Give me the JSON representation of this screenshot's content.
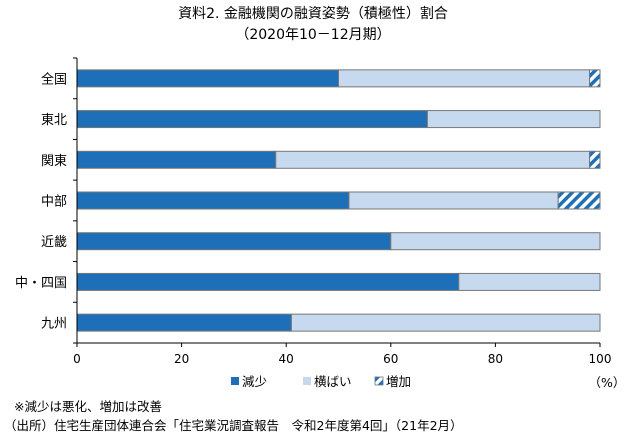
{
  "title": "資料2. 金融機関の融資姿勢（積極性）割合",
  "subtitle": "（2020年10－12月期）",
  "unit_label": "（%）",
  "notes": {
    "note1": "※減少は悪化、増加は改善",
    "source": "（出所）住宅生産団体連合会「住宅業況調査報告　令和2年度第4回」（21年2月）"
  },
  "colors": {
    "decrease": "#1d6fb8",
    "flat": "#c6d9ef",
    "increase": "#1d6fb8",
    "bar_edge": "#777777",
    "axis": "#000000"
  },
  "chart_data": {
    "type": "bar",
    "orientation": "horizontal",
    "stacked": true,
    "categories": [
      "全国",
      "東北",
      "関東",
      "中部",
      "近畿",
      "中・四国",
      "九州"
    ],
    "series": [
      {
        "name": "減少",
        "values": [
          50,
          67,
          38,
          52,
          60,
          73,
          41
        ],
        "fill": "solid"
      },
      {
        "name": "横ばい",
        "values": [
          48,
          33,
          60,
          40,
          40,
          27,
          59
        ],
        "fill": "solid"
      },
      {
        "name": "増加",
        "values": [
          2,
          0,
          2,
          8,
          0,
          0,
          0
        ],
        "fill": "hatched"
      }
    ],
    "xlim": [
      0,
      100
    ],
    "xticks": [
      "0",
      "20",
      "40",
      "60",
      "80",
      "100"
    ],
    "legend_position": "bottom",
    "grid": false
  }
}
